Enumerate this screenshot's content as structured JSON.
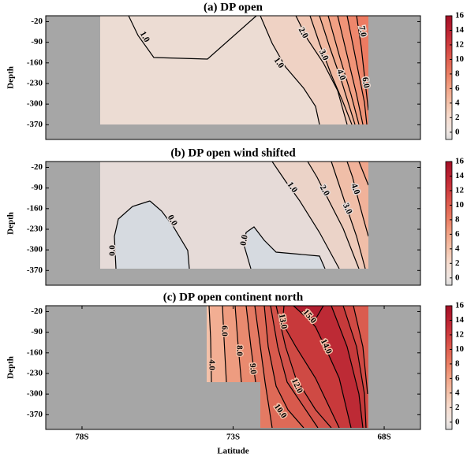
{
  "chart_data": [
    {
      "type": "contour",
      "title": "(a)  DP open",
      "ylabel": "Depth",
      "ylim": [
        -420,
        0
      ],
      "yticks": [
        -20,
        -90,
        -160,
        -230,
        -300,
        -370
      ],
      "colorbar_lim": [
        -1,
        16
      ],
      "colorbar_ticks": [
        0,
        2,
        4,
        6,
        8,
        10,
        12,
        14,
        16
      ],
      "contour_labels": [
        {
          "value": 1,
          "label": "1.0"
        },
        {
          "value": 1,
          "label": "1.0"
        },
        {
          "value": 2,
          "label": "2.0"
        },
        {
          "value": 3,
          "label": "3.0"
        },
        {
          "value": 4,
          "label": "4.0"
        },
        {
          "value": 7,
          "label": "7.0"
        },
        {
          "value": 6,
          "label": "6.0"
        }
      ]
    },
    {
      "type": "contour",
      "title": "(b) DP open wind shifted",
      "ylabel": "Depth",
      "ylim": [
        -420,
        0
      ],
      "yticks": [
        -20,
        -90,
        -160,
        -230,
        -300,
        -370
      ],
      "colorbar_lim": [
        -1,
        16
      ],
      "colorbar_ticks": [
        0,
        2,
        4,
        6,
        8,
        10,
        12,
        14,
        16
      ],
      "contour_labels": [
        {
          "value": 0,
          "label": "0.0"
        },
        {
          "value": 0,
          "label": "0.0"
        },
        {
          "value": 0,
          "label": "0.0"
        },
        {
          "value": 1,
          "label": "1.0"
        },
        {
          "value": 2,
          "label": "2.0"
        },
        {
          "value": 3,
          "label": "3.0"
        },
        {
          "value": 4,
          "label": "4.0"
        }
      ]
    },
    {
      "type": "contour",
      "title": "(c) DP open continent north",
      "ylabel": "Depth",
      "xlabel": "Latitude",
      "xlim": [
        -79.2,
        -66.8
      ],
      "xticks": [
        {
          "value": -78,
          "label": "78S"
        },
        {
          "value": -73,
          "label": "73S"
        },
        {
          "value": -68,
          "label": "68S"
        }
      ],
      "ylim": [
        -420,
        0
      ],
      "yticks": [
        -20,
        -90,
        -160,
        -230,
        -300,
        -370
      ],
      "colorbar_lim": [
        -1,
        16
      ],
      "colorbar_ticks": [
        0,
        2,
        4,
        6,
        8,
        10,
        12,
        14,
        16
      ],
      "contour_labels": [
        {
          "value": 4,
          "label": "4.0"
        },
        {
          "value": 6,
          "label": "6.0"
        },
        {
          "value": 8,
          "label": "8.0"
        },
        {
          "value": 9,
          "label": "9.0"
        },
        {
          "value": 10,
          "label": "10.0"
        },
        {
          "value": 12,
          "label": "12.0"
        },
        {
          "value": 13,
          "label": "13.0"
        },
        {
          "value": 14,
          "label": "14.0"
        },
        {
          "value": 15,
          "label": "15.0"
        }
      ]
    }
  ]
}
